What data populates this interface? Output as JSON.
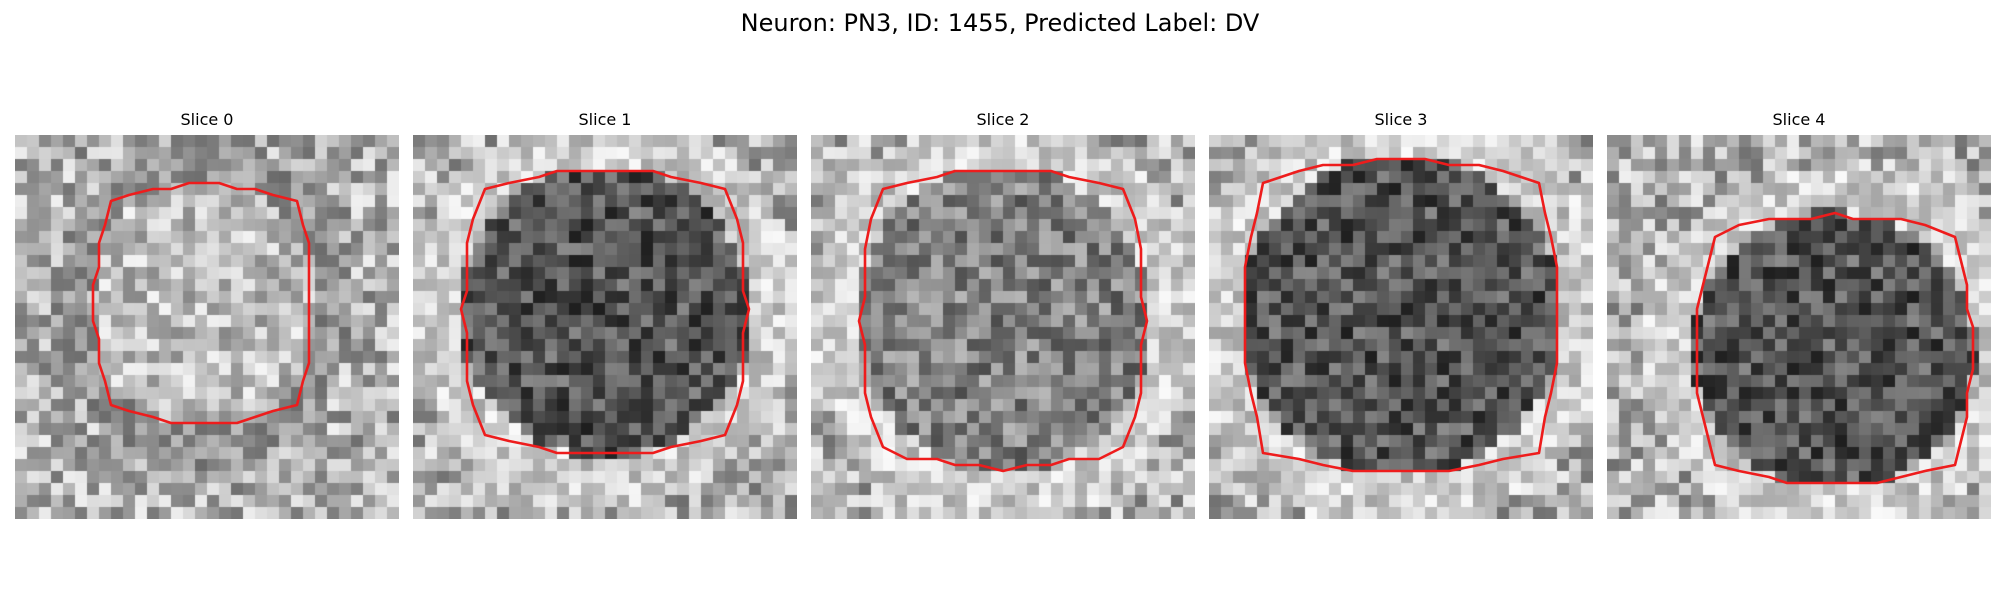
{
  "figure": {
    "title": "Neuron: PN3, ID: 1455, Predicted Label: DV"
  },
  "colors": {
    "contour": "#ee1c1c",
    "background": "#ffffff",
    "colormap": "grayscale"
  },
  "slices": [
    {
      "title": "Slice 0",
      "center": [
        0.49,
        0.44
      ],
      "radius": [
        0.29,
        0.32
      ],
      "inside_tone": "light",
      "noise_seed": 11
    },
    {
      "title": "Slice 1",
      "center": [
        0.5,
        0.46
      ],
      "radius": [
        0.38,
        0.38
      ],
      "inside_tone": "dark",
      "noise_seed": 23
    },
    {
      "title": "Slice 2",
      "center": [
        0.5,
        0.48
      ],
      "radius": [
        0.38,
        0.4
      ],
      "inside_tone": "mid",
      "noise_seed": 37
    },
    {
      "title": "Slice 3",
      "center": [
        0.5,
        0.47
      ],
      "radius": [
        0.42,
        0.42
      ],
      "inside_tone": "dark",
      "noise_seed": 41
    },
    {
      "title": "Slice 4",
      "center": [
        0.59,
        0.56
      ],
      "radius": [
        0.37,
        0.36
      ],
      "inside_tone": "dark",
      "noise_seed": 53
    }
  ]
}
